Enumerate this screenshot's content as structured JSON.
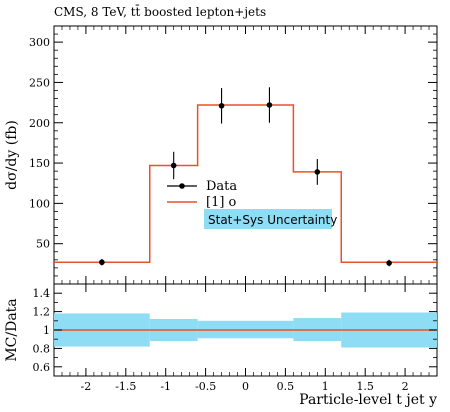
{
  "title": "CMS, 8 TeV, tt̄ boosted lepton+jets",
  "colors": {
    "mc_line": "#e8502e",
    "uncertainty_band": "#8fdcf5",
    "data_marker": "#000000"
  },
  "chart_data": [
    {
      "type": "line",
      "panel": "main",
      "ylabel": "dσ/dy (fb)",
      "xlim": [
        -2.4,
        2.4
      ],
      "ylim": [
        0,
        320
      ],
      "yticks": [
        50,
        100,
        150,
        200,
        250,
        300
      ],
      "bin_edges": [
        -2.4,
        -1.2,
        -0.6,
        0.0,
        0.6,
        1.2,
        2.4
      ],
      "series": [
        {
          "name": "Data",
          "style": "points-with-errorbars",
          "x": [
            -1.8,
            -0.9,
            -0.3,
            0.3,
            0.9,
            1.8
          ],
          "values": [
            27,
            147,
            221,
            222,
            139,
            26
          ],
          "errors": [
            4,
            17,
            22,
            22,
            16,
            4
          ]
        },
        {
          "name": "[1] o",
          "style": "step",
          "values": [
            27,
            147,
            222,
            222,
            139,
            27
          ]
        }
      ],
      "legend": {
        "placement": "center",
        "entries": [
          "Data",
          "[1] o",
          "Stat+Sys Uncertainty"
        ]
      }
    },
    {
      "type": "area",
      "panel": "ratio",
      "ylabel": "MC/Data",
      "xlabel": "Particle-level t jet y",
      "xlim": [
        -2.4,
        2.4
      ],
      "ylim": [
        0.5,
        1.5
      ],
      "yticks": [
        0.6,
        0.8,
        1.0,
        1.2,
        1.4
      ],
      "yticklabels": [
        "0.6",
        "0.8",
        "1",
        "1.2",
        "1.4"
      ],
      "xticks": [
        -2,
        -1.5,
        -1,
        -0.5,
        0,
        0.5,
        1,
        1.5,
        2
      ],
      "xticklabels": [
        "-2",
        "-1.5",
        "-1",
        "-0.5",
        "0",
        "0.5",
        "1",
        "1.5",
        "2"
      ],
      "bin_edges": [
        -2.4,
        -1.2,
        -0.6,
        0.0,
        0.6,
        1.2,
        2.4
      ],
      "band_low": [
        0.82,
        0.88,
        0.91,
        0.91,
        0.88,
        0.81
      ],
      "band_high": [
        1.18,
        1.12,
        1.1,
        1.1,
        1.13,
        1.19
      ],
      "series": [
        {
          "name": "[1] o",
          "values": [
            1.0,
            1.0,
            1.0,
            1.0,
            1.0,
            1.0
          ]
        }
      ]
    }
  ]
}
